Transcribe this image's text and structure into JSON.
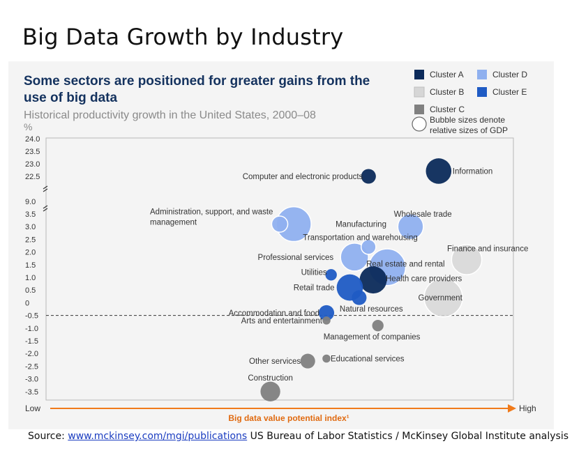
{
  "slide_title": "Big Data Growth by Industry",
  "source": {
    "prefix": "Source: ",
    "link": "www.mckinsey.com/mgi/publications",
    "suffix": "  US Bureau of Labor Statistics / McKinsey Global Institute analysis"
  },
  "chart_data": {
    "type": "scatter",
    "title": "Some sectors are positioned for greater gains from the use of big data",
    "subtitle": "Historical productivity growth in the United States, 2000–08",
    "ylabel": "%",
    "xlabel": "Big data value potential index¹",
    "x_low_label": "Low",
    "x_high_label": "High",
    "y_ticks": [
      "24.0",
      "23.5",
      "23.0",
      "22.5",
      "9.0",
      "3.5",
      "3.0",
      "2.5",
      "2.0",
      "1.5",
      "1.0",
      "0.5",
      "0",
      "-0.5",
      "-1.0",
      "-1.5",
      "-2.0",
      "-2.5",
      "-3.0",
      "-3.5"
    ],
    "y_break_between": [
      "22.5",
      "9.0"
    ],
    "reference_line_y": -0.5,
    "legend_position": "top-right",
    "legend": [
      {
        "name": "Cluster A",
        "color": "#0b2a5a"
      },
      {
        "name": "Cluster B",
        "color": "#d6d6d6"
      },
      {
        "name": "Cluster C",
        "color": "#808080"
      },
      {
        "name": "Cluster D",
        "color": "#8fb0ef"
      },
      {
        "name": "Cluster E",
        "color": "#1f5bc4"
      }
    ],
    "legend_note": [
      "Bubble sizes denote",
      "relative sizes of GDP"
    ],
    "points": [
      {
        "label": "Computer and electronic products",
        "x": 0.69,
        "y": 22.5,
        "cluster": "Cluster A",
        "size": 1.0
      },
      {
        "label": "Information",
        "x": 0.84,
        "y": 22.3,
        "cluster": "Cluster A",
        "size": 3.0
      },
      {
        "label": "Administration, support, and waste management",
        "x": 0.5,
        "y": 3.1,
        "cluster": "Cluster D",
        "size": 1.2
      },
      {
        "label": "Manufacturing",
        "x": 0.53,
        "y": 3.1,
        "cluster": "Cluster D",
        "size": 5.6
      },
      {
        "label": "Wholesale trade",
        "x": 0.78,
        "y": 3.0,
        "cluster": "Cluster D",
        "size": 3.0
      },
      {
        "label": "Transportation and warehousing",
        "x": 0.69,
        "y": 2.2,
        "cluster": "Cluster D",
        "size": 1.0
      },
      {
        "label": "Finance and insurance",
        "x": 0.9,
        "y": 1.7,
        "cluster": "Cluster B",
        "size": 4.2
      },
      {
        "label": "Professional services",
        "x": 0.66,
        "y": 1.8,
        "cluster": "Cluster D",
        "size": 3.6
      },
      {
        "label": "Real estate and rental",
        "x": 0.73,
        "y": 1.4,
        "cluster": "Cluster D",
        "size": 6.2
      },
      {
        "label": "Health care providers",
        "x": 0.7,
        "y": 0.9,
        "cluster": "Cluster A",
        "size": 3.4
      },
      {
        "label": "Utilities",
        "x": 0.61,
        "y": 1.1,
        "cluster": "Cluster E",
        "size": 0.6
      },
      {
        "label": "Retail trade",
        "x": 0.65,
        "y": 0.6,
        "cluster": "Cluster E",
        "size": 3.2
      },
      {
        "label": "Government",
        "x": 0.85,
        "y": 0.2,
        "cluster": "Cluster B",
        "size": 6.8
      },
      {
        "label": "Natural resources",
        "x": 0.67,
        "y": 0.2,
        "cluster": "Cluster E",
        "size": 1.0
      },
      {
        "label": "Accommodation and food",
        "x": 0.6,
        "y": -0.4,
        "cluster": "Cluster E",
        "size": 1.1
      },
      {
        "label": "Arts and entertainment",
        "x": 0.6,
        "y": -0.7,
        "cluster": "Cluster C",
        "size": 0.3
      },
      {
        "label": "Management of companies",
        "x": 0.71,
        "y": -0.9,
        "cluster": "Cluster C",
        "size": 0.6
      },
      {
        "label": "Other services",
        "x": 0.56,
        "y": -2.3,
        "cluster": "Cluster C",
        "size": 1.0
      },
      {
        "label": "Educational services",
        "x": 0.6,
        "y": -2.2,
        "cluster": "Cluster C",
        "size": 0.3
      },
      {
        "label": "Construction",
        "x": 0.48,
        "y": -3.5,
        "cluster": "Cluster C",
        "size": 1.8
      }
    ]
  }
}
